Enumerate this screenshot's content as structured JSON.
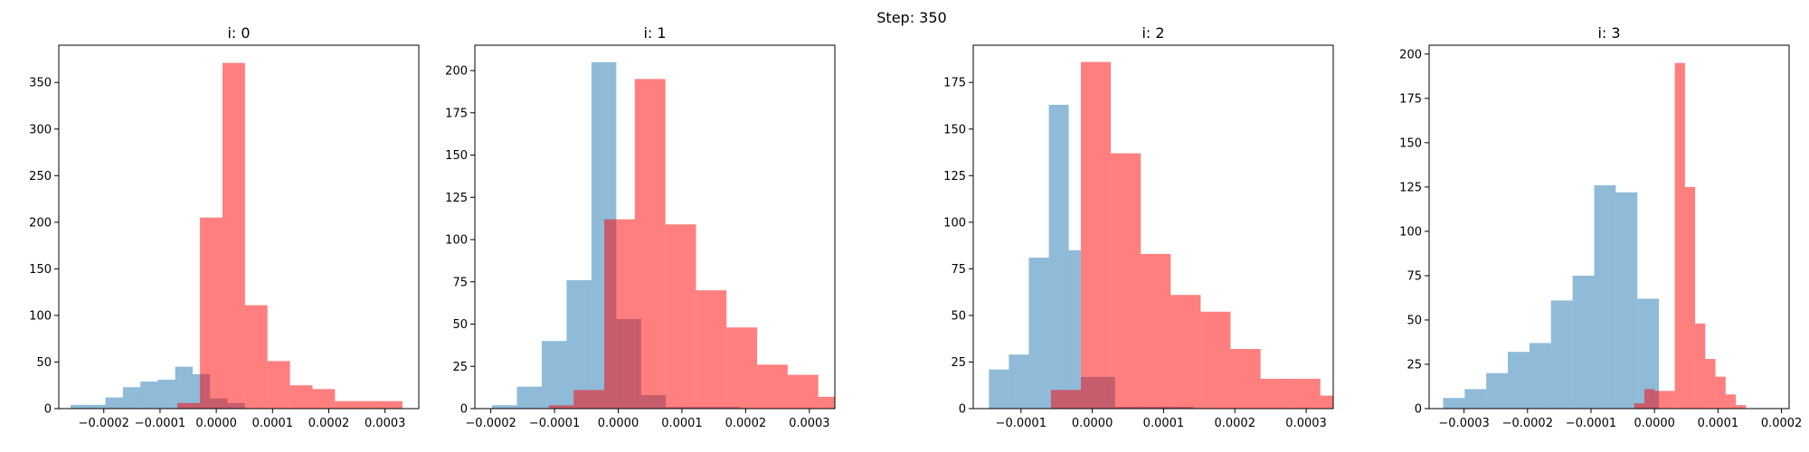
{
  "suptitle": "Step: 350",
  "colors": {
    "blue": "#1f77b4",
    "red": "#ff0000",
    "axis": "#000000"
  },
  "chart_data": [
    {
      "type": "histogram",
      "title": "i: 0",
      "xlim": [
        -0.00028,
        0.00036
      ],
      "ylim": [
        0,
        390
      ],
      "xticks": [
        -0.0002,
        -0.0001,
        0.0,
        0.0001,
        0.0002,
        0.0003
      ],
      "xtick_labels": [
        "−0.0002",
        "−0.0001",
        "0.0000",
        "0.0001",
        "0.0002",
        "0.0003"
      ],
      "yticks": [
        0,
        50,
        100,
        150,
        200,
        250,
        300,
        350
      ],
      "ytick_labels": [
        "0",
        "50",
        "100",
        "150",
        "200",
        "250",
        "300",
        "350"
      ],
      "series": [
        {
          "color": "#1f77b4",
          "alpha": 0.5,
          "bin_edges": [
            -0.000259,
            -0.000228,
            -0.000197,
            -0.000166,
            -0.000135,
            -0.000104,
            -7.3e-05,
            -4.2e-05,
            -1.1e-05,
            2e-05,
            5.1e-05
          ],
          "counts": [
            4,
            4,
            12,
            23,
            29,
            31,
            45,
            37,
            11,
            6
          ]
        },
        {
          "color": "#ff0000",
          "alpha": 0.5,
          "bin_edges": [
            -6.9e-05,
            -2.9e-05,
            1.1e-05,
            5.1e-05,
            9.1e-05,
            0.000131,
            0.000171,
            0.000211,
            0.000251,
            0.000291,
            0.000331
          ],
          "counts": [
            6,
            205,
            371,
            111,
            51,
            25,
            21,
            8,
            8,
            8
          ]
        }
      ]
    },
    {
      "type": "histogram",
      "title": "i: 1",
      "xlim": [
        -0.000225,
        0.00034
      ],
      "ylim": [
        0,
        215
      ],
      "xticks": [
        -0.0002,
        -0.0001,
        0.0,
        0.0001,
        0.0002,
        0.0003
      ],
      "xtick_labels": [
        "−0.0002",
        "−0.0001",
        "0.0000",
        "0.0001",
        "0.0002",
        "0.0003"
      ],
      "yticks": [
        0,
        25,
        50,
        75,
        100,
        125,
        150,
        175,
        200
      ],
      "ytick_labels": [
        "0",
        "25",
        "50",
        "75",
        "100",
        "125",
        "150",
        "175",
        "200"
      ],
      "series": [
        {
          "color": "#1f77b4",
          "alpha": 0.5,
          "bin_edges": [
            -0.000198,
            -0.000159,
            -0.00012,
            -8.1e-05,
            -4.2e-05,
            -3e-06,
            3.6e-05,
            7.5e-05,
            0.000114,
            0.000153,
            0.000192
          ],
          "counts": [
            2,
            13,
            40,
            76,
            205,
            53,
            8,
            1,
            1,
            1
          ]
        },
        {
          "color": "#ff0000",
          "alpha": 0.5,
          "bin_edges": [
            -0.000109,
            -7e-05,
            -2.2e-05,
            2.6e-05,
            7.4e-05,
            0.000122,
            0.00017,
            0.000218,
            0.000266,
            0.000314,
            0.000362
          ],
          "counts": [
            2,
            11,
            112,
            195,
            109,
            70,
            48,
            26,
            20,
            7
          ]
        }
      ]
    },
    {
      "type": "histogram",
      "title": "i: 2",
      "xlim": [
        -0.000167,
        0.000338
      ],
      "ylim": [
        0,
        195
      ],
      "xticks": [
        -0.0001,
        0.0,
        0.0001,
        0.0002,
        0.0003
      ],
      "xtick_labels": [
        "−0.0001",
        "0.0000",
        "0.0001",
        "0.0002",
        "0.0003"
      ],
      "yticks": [
        0,
        25,
        50,
        75,
        100,
        125,
        150,
        175
      ],
      "ytick_labels": [
        "0",
        "25",
        "50",
        "75",
        "100",
        "125",
        "150",
        "175"
      ],
      "series": [
        {
          "color": "#1f77b4",
          "alpha": 0.5,
          "bin_edges": [
            -0.000145,
            -0.000117,
            -8.9e-05,
            -6.1e-05,
            -3.3e-05,
            -1.6e-05,
            3.2e-05,
            5.8e-05,
            8.6e-05,
            0.000114,
            0.000142
          ],
          "counts": [
            21,
            29,
            81,
            163,
            85,
            17,
            1,
            1,
            1,
            1
          ]
        },
        {
          "color": "#ff0000",
          "alpha": 0.5,
          "bin_edges": [
            -5.8e-05,
            -1.6e-05,
            2.6e-05,
            6.8e-05,
            0.00011,
            0.000152,
            0.000194,
            0.000236,
            0.000278,
            0.00032,
            0.000362
          ],
          "counts": [
            10,
            186,
            137,
            83,
            61,
            52,
            32,
            16,
            16,
            7
          ]
        }
      ]
    },
    {
      "type": "histogram",
      "title": "i: 3",
      "xlim": [
        -0.000355,
        0.000212
      ],
      "ylim": [
        0,
        205
      ],
      "xticks": [
        -0.0003,
        -0.0002,
        -0.0001,
        0.0,
        0.0001,
        0.0002
      ],
      "xtick_labels": [
        "−0.0003",
        "−0.0002",
        "−0.0001",
        "0.0000",
        "0.0001",
        "0.0002"
      ],
      "yticks": [
        0,
        25,
        50,
        75,
        100,
        125,
        150,
        175,
        200
      ],
      "ytick_labels": [
        "0",
        "25",
        "50",
        "75",
        "100",
        "125",
        "150",
        "175",
        "200"
      ],
      "series": [
        {
          "color": "#1f77b4",
          "alpha": 0.5,
          "bin_edges": [
            -0.000333,
            -0.000299,
            -0.000265,
            -0.000231,
            -0.000197,
            -0.000163,
            -0.000129,
            -9.5e-05,
            -6.1e-05,
            -2.7e-05,
            7e-06
          ],
          "counts": [
            6,
            11,
            20,
            32,
            37,
            61,
            75,
            126,
            122,
            62
          ]
        },
        {
          "color": "#ff0000",
          "alpha": 0.5,
          "bin_edges": [
            -3.2e-05,
            -1.6e-05,
            -0.0,
            1.6e-05,
            3.2e-05,
            4.8e-05,
            6.4e-05,
            8e-05,
            9.6e-05,
            0.000112,
            0.000128,
            0.000144,
            0.00016,
            0.000176,
            0.000192
          ],
          "counts": [
            3,
            11,
            10,
            10,
            195,
            125,
            48,
            28,
            18,
            8,
            2,
            0,
            0,
            0
          ]
        }
      ]
    }
  ]
}
